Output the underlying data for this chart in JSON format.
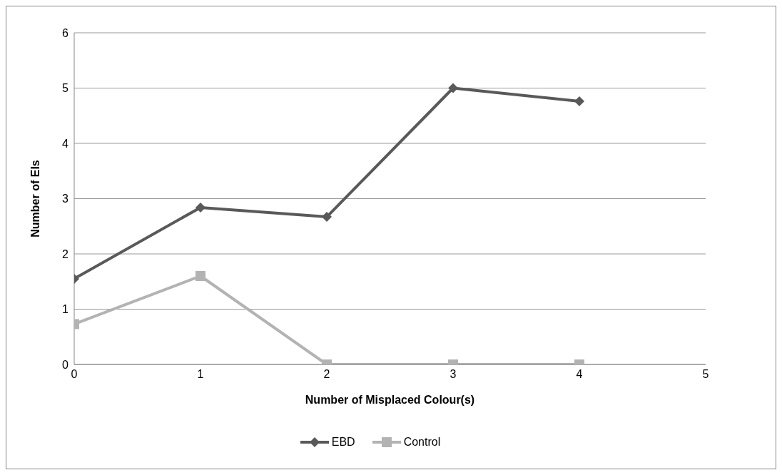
{
  "chart_data": {
    "type": "line",
    "xlabel": "Number of Misplaced Colour(s)",
    "ylabel": "Number of EIs",
    "x": [
      0,
      1,
      2,
      3,
      4
    ],
    "series": [
      {
        "name": "EBD",
        "color": "#595959",
        "marker": "diamond",
        "values": [
          1.55,
          2.84,
          2.67,
          5.0,
          4.76
        ]
      },
      {
        "name": "Control",
        "color": "#b3b3b3",
        "marker": "square",
        "values": [
          0.73,
          1.6,
          0,
          0,
          0
        ]
      }
    ],
    "xlim": [
      0,
      5
    ],
    "xticks": [
      0,
      1,
      2,
      3,
      4,
      5
    ],
    "ylim": [
      0,
      6
    ],
    "yticks": [
      0,
      1,
      2,
      3,
      4,
      5,
      6
    ],
    "grid": "y",
    "legend": "bottom",
    "line_style": "solid"
  }
}
